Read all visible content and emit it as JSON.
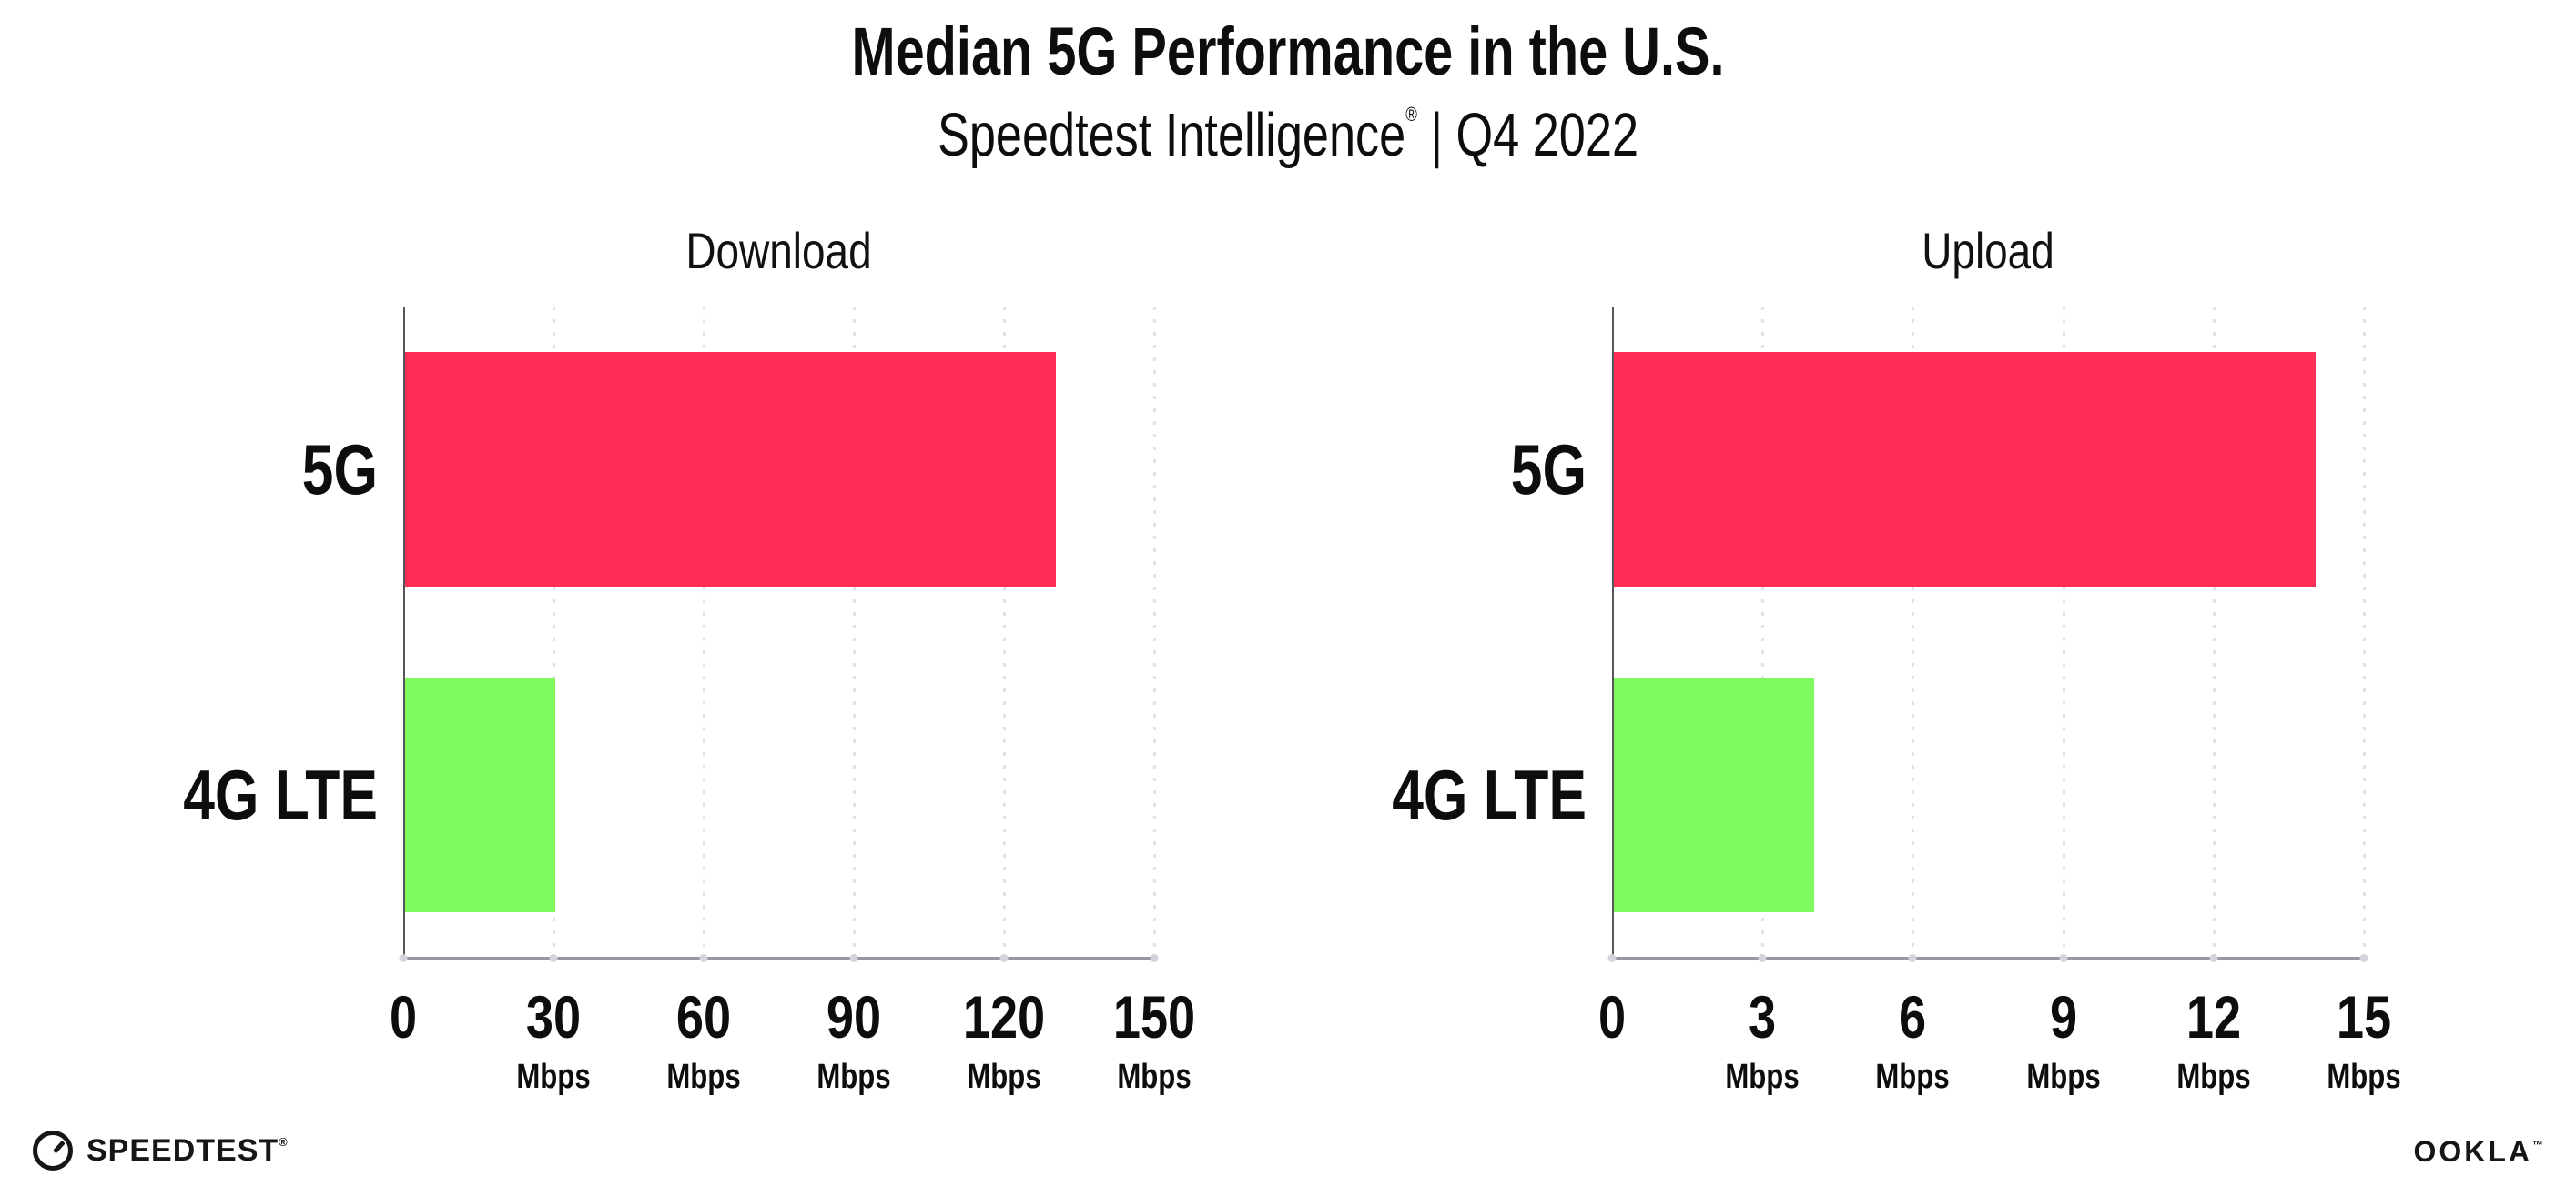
{
  "header": {
    "title": "Median 5G Performance in the U.S.",
    "subtitle_brand": "Speedtest Intelligence",
    "subtitle_reg": "®",
    "subtitle_rest": " | Q4 2022"
  },
  "chart_data": [
    {
      "type": "bar",
      "orientation": "horizontal",
      "title": "Download",
      "categories": [
        "5G",
        "4G LTE"
      ],
      "values": [
        130,
        30
      ],
      "unit": "Mbps",
      "xlim": [
        0,
        150
      ],
      "xticks": [
        0,
        30,
        60,
        90,
        120,
        150
      ],
      "bar_colors": [
        "#FE2D56",
        "#7FFA5E"
      ],
      "grid": "vertical-dotted",
      "legend": "none"
    },
    {
      "type": "bar",
      "orientation": "horizontal",
      "title": "Upload",
      "categories": [
        "5G",
        "4G LTE"
      ],
      "values": [
        14,
        4
      ],
      "unit": "Mbps",
      "xlim": [
        0,
        15
      ],
      "xticks": [
        0,
        3,
        6,
        9,
        12,
        15
      ],
      "bar_colors": [
        "#FE2D56",
        "#7FFA5E"
      ],
      "grid": "vertical-dotted",
      "legend": "none"
    }
  ],
  "footer": {
    "speedtest_label": "SPEEDTEST",
    "speedtest_reg": "®",
    "ookla_label": "OOKLA",
    "ookla_reg": "™"
  },
  "colors": {
    "bar_5g": "#FE2D56",
    "bar_4g_lte": "#7FFA5E",
    "gridline": "#E2E2EC",
    "x_axis": "#97979F",
    "y_axis": "#55555C",
    "text": "#0D0D0D"
  }
}
